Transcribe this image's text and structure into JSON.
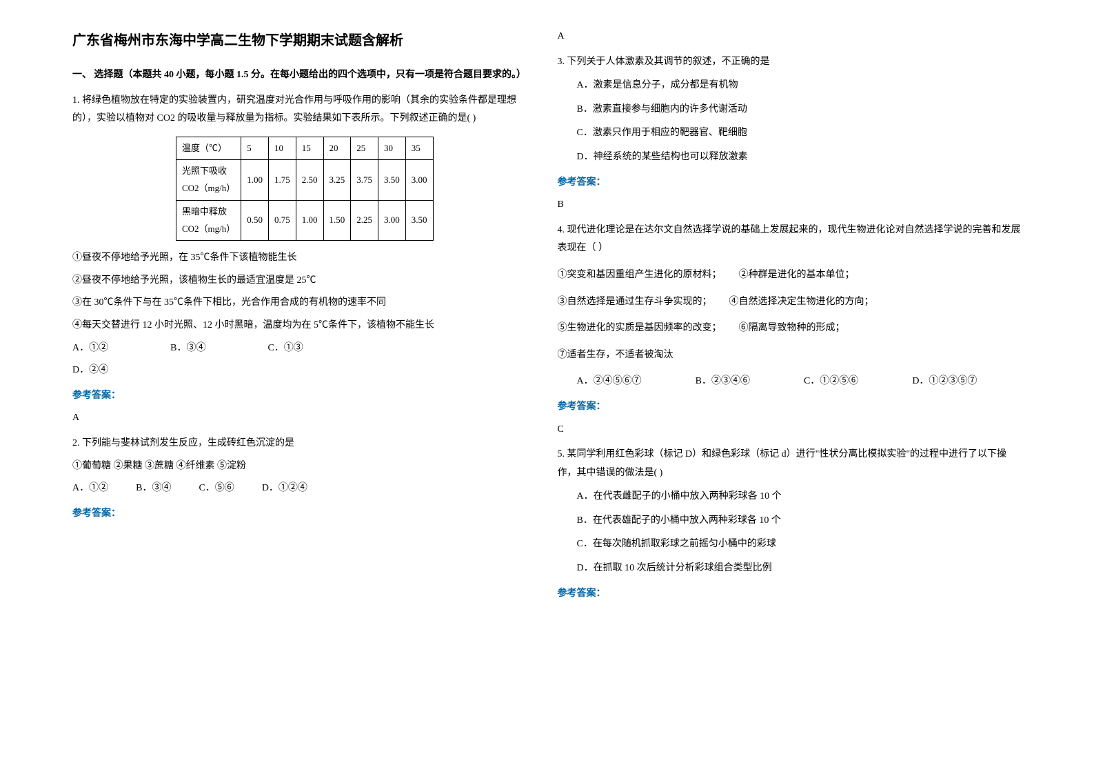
{
  "title": "广东省梅州市东海中学高二生物下学期期末试题含解析",
  "section_header": "一、 选择题（本题共 40 小题，每小题 1.5 分。在每小题给出的四个选项中，只有一项是符合题目要求的。）",
  "q1": {
    "text": "1. 将绿色植物放在特定的实验装置内，研究温度对光合作用与呼吸作用的影响（其余的实验条件都是理想的），实验以植物对 CO2 的吸收量与释放量为指标。实验结果如下表所示。下列叙述正确的是(    )",
    "table": {
      "headers": [
        "温度（℃）",
        "5",
        "10",
        "15",
        "20",
        "25",
        "30",
        "35"
      ],
      "row1_label": "光照下吸收\nCO2（mg/h）",
      "row1": [
        "1.00",
        "1.75",
        "2.50",
        "3.25",
        "3.75",
        "3.50",
        "3.00"
      ],
      "row2_label": "黑暗中释放\nCO2（mg/h）",
      "row2": [
        "0.50",
        "0.75",
        "1.00",
        "1.50",
        "2.25",
        "3.00",
        "3.50"
      ]
    },
    "subs": [
      "①昼夜不停地给予光照，在 35℃条件下该植物能生长",
      "②昼夜不停地给予光照，该植物生长的最适宜温度是 25℃",
      "③在 30℃条件下与在 35℃条件下相比，光合作用合成的有机物的速率不同",
      "④每天交替进行 12 小时光照、12 小时黑暗，温度均为在 5℃条件下，该植物不能生长"
    ],
    "opts": [
      "A．①②",
      "B．③④",
      "C．①③",
      "D．②④"
    ],
    "answer": "A"
  },
  "q2": {
    "text": "2. 下列能与斐林试剂发生反应，生成砖红色沉淀的是",
    "sub": "①葡萄糖  ②果糖  ③蔗糖  ④纤维素  ⑤淀粉",
    "opts": [
      "A．①②",
      "B．③④",
      "C．⑤⑥",
      "D．①②④"
    ],
    "answer": "A"
  },
  "q3": {
    "text": "3. 下列关于人体激素及其调节的叙述，不正确的是",
    "opts": [
      "A．激素是信息分子，成分都是有机物",
      "B．激素直接参与细胞内的许多代谢活动",
      "C．激素只作用于相应的靶器官、靶细胞",
      "D．神经系统的某些结构也可以释放激素"
    ],
    "answer": "B"
  },
  "q4": {
    "text": "4. 现代进化理论是在达尔文自然选择学说的基础上发展起来的，现代生物进化论对自然选择学说的完善和发展表现在（     ）",
    "stmts": [
      [
        "①突变和基因重组产生进化的原材料；",
        "②种群是进化的基本单位；"
      ],
      [
        "③自然选择是通过生存斗争实现的；",
        "④自然选择决定生物进化的方向；"
      ],
      [
        "⑤生物进化的实质是基因频率的改变；",
        "⑥隔离导致物种的形成；"
      ],
      [
        "⑦适者生存，不适者被淘汰",
        ""
      ]
    ],
    "opts": [
      "A．②④⑤⑥⑦",
      "B．②③④⑥",
      "C．①②⑤⑥",
      "D．①②③⑤⑦"
    ],
    "answer": "C"
  },
  "q5": {
    "text": "5. 某同学利用红色彩球（标记 D）和绿色彩球（标记 d）进行\"性状分离比模拟实验\"的过程中进行了以下操作，其中错误的做法是(    )",
    "opts": [
      "A．在代表雌配子的小桶中放入两种彩球各 10 个",
      "B．在代表雄配子的小桶中放入两种彩球各 10 个",
      "C．在每次随机抓取彩球之前摇匀小桶中的彩球",
      "D．在抓取 10 次后统计分析彩球组合类型比例"
    ]
  },
  "answer_label": "参考答案："
}
